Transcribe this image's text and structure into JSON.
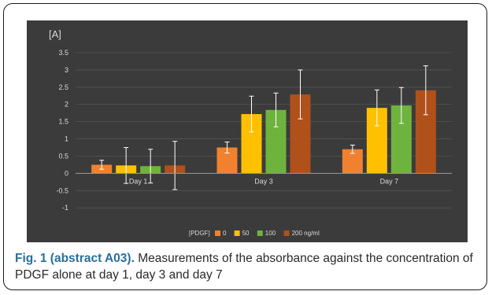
{
  "caption": {
    "lead": "Fig. 1 (abstract A03).",
    "text": " Measurements of the absorbance against the concentration of PDGF alone at day 1, day 3 and day 7"
  },
  "colors": {
    "panel": "#3b3b3b",
    "grid": "#555555",
    "axis": "#9a9a9a",
    "text": "#d9d9d9",
    "error_bar": "#ffffff",
    "series": [
      "#f0822f",
      "#ffc000",
      "#6fb33f",
      "#b0501a"
    ]
  },
  "chart_data": {
    "type": "bar",
    "title": "",
    "ylabel": "[A]",
    "xlabel": "",
    "ylim": [
      -1.2,
      3.5
    ],
    "yticks": [
      3.5,
      3,
      2.5,
      2,
      1.5,
      1,
      0.5,
      0,
      -0.5,
      -1
    ],
    "ytick_labels": [
      "3.5",
      "3",
      "2.5",
      "2",
      "1.5",
      "1",
      "0.5",
      "0",
      "-0.5",
      "-1"
    ],
    "categories": [
      "Day 1",
      "Day 3",
      "Day 7"
    ],
    "legend_title": "[PDGF]",
    "legend_position": "bottom",
    "series": [
      {
        "name": "0",
        "values": [
          0.25,
          0.75,
          0.7
        ],
        "errors": [
          0.13,
          0.16,
          0.12
        ]
      },
      {
        "name": "50",
        "values": [
          0.23,
          1.72,
          1.9
        ],
        "errors": [
          0.52,
          0.52,
          0.52
        ]
      },
      {
        "name": "100",
        "values": [
          0.21,
          1.84,
          1.97
        ],
        "errors": [
          0.49,
          0.49,
          0.52
        ]
      },
      {
        "name": "200 ng/ml",
        "values": [
          0.23,
          2.29,
          2.41
        ],
        "errors": [
          0.7,
          0.71,
          0.71
        ]
      }
    ]
  }
}
